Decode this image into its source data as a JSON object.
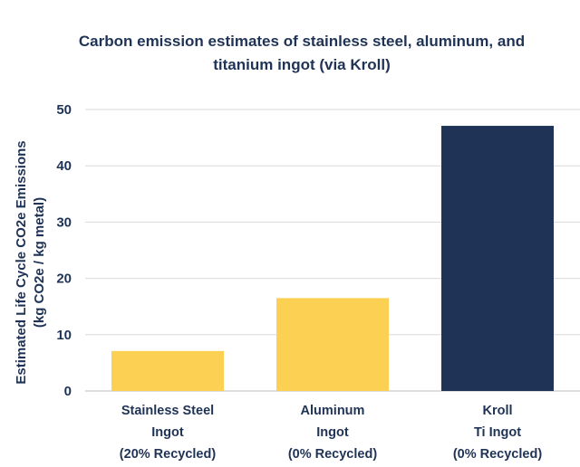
{
  "chart_data": {
    "type": "bar",
    "title": [
      "Carbon emission estimates of stainless steel, aluminum, and",
      "titanium ingot (via Kroll)"
    ],
    "ylabel": [
      "Estimated Life Cycle CO2e Emissions",
      "(kg CO2e / kg metal)"
    ],
    "xlabel": "",
    "categories": [
      [
        "Stainless Steel",
        "Ingot",
        "(20% Recycled)"
      ],
      [
        "Aluminum",
        "Ingot",
        "(0% Recycled)"
      ],
      [
        "Kroll",
        "Ti Ingot",
        "(0% Recycled)"
      ]
    ],
    "values": [
      7.1,
      16.5,
      47.1
    ],
    "bar_colors": [
      "#fcd153",
      "#fcd153",
      "#1f3356"
    ],
    "ylim": [
      0,
      50
    ],
    "yticks": [
      0,
      10,
      20,
      30,
      40,
      50
    ],
    "grid": true,
    "legend": "none"
  }
}
